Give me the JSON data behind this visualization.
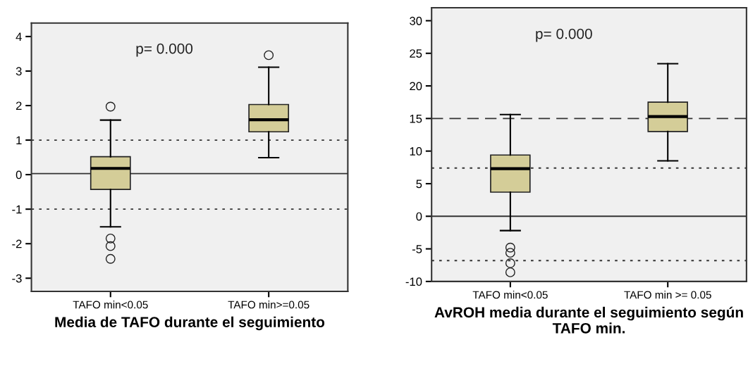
{
  "chart_data": [
    {
      "type": "box",
      "xlabel": "Media de TAFO durante el seguimiento",
      "categories": [
        "TAFO min<0.05",
        "TAFO min>=0.05"
      ],
      "color": "#d4cd98",
      "boxes": [
        {
          "low": -1.51,
          "q1": -0.43,
          "median": 0.18,
          "q3": 0.52,
          "high": 1.58,
          "outliers": [
            1.97,
            -1.85,
            -2.07,
            -2.44
          ]
        },
        {
          "low": 0.49,
          "q1": 1.24,
          "median": 1.59,
          "q3": 2.03,
          "high": 3.11,
          "outliers": [
            3.46
          ]
        }
      ],
      "ylim": [
        -3.38,
        4.39
      ],
      "yticks": [
        -3,
        -2,
        -1,
        0,
        1,
        2,
        3,
        4
      ],
      "grid": false,
      "ref_lines": [
        {
          "axis": "y",
          "value": 1,
          "line_style": "dotted"
        },
        {
          "axis": "y",
          "value": -1,
          "line_style": "dotted"
        },
        {
          "axis": "y",
          "value": 0.03,
          "line_style": "solid"
        }
      ],
      "annotations": [
        "p= 0.000"
      ]
    },
    {
      "type": "box",
      "xlabel": "AvROH media durante el seguimiento según TAFO min.",
      "categories": [
        "TAFO min<0.05",
        "TAFO min >= 0.05"
      ],
      "color": "#d4cd98",
      "boxes": [
        {
          "low": -2.2,
          "q1": 3.7,
          "median": 7.3,
          "q3": 9.4,
          "high": 15.6,
          "outliers": [
            -4.8,
            -5.6,
            -7.2,
            -8.6
          ]
        },
        {
          "low": 8.5,
          "q1": 13.0,
          "median": 15.3,
          "q3": 17.5,
          "high": 23.4
        }
      ],
      "ylim": [
        -10,
        32
      ],
      "yticks": [
        -10,
        -5,
        0,
        5,
        10,
        15,
        20,
        25,
        30
      ],
      "grid": false,
      "ref_lines": [
        {
          "axis": "y",
          "value": 15,
          "line_style": "dashed"
        },
        {
          "axis": "y",
          "value": 7.4,
          "line_style": "dotted"
        },
        {
          "axis": "y",
          "value": -6.8,
          "line_style": "dotted"
        },
        {
          "axis": "y",
          "value": 0,
          "line_style": "solid"
        }
      ],
      "annotations": [
        "p= 0.000"
      ]
    }
  ]
}
